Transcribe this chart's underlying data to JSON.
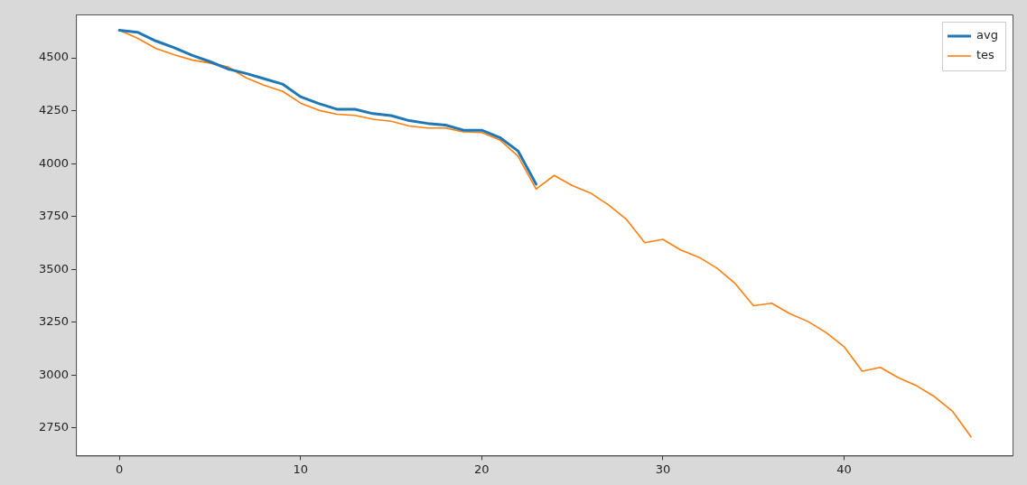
{
  "chart_data": {
    "type": "line",
    "x": [
      0,
      1,
      2,
      3,
      4,
      5,
      6,
      7,
      8,
      9,
      10,
      11,
      12,
      13,
      14,
      15,
      16,
      17,
      18,
      19,
      20,
      21,
      22,
      23,
      24,
      25,
      26,
      27,
      28,
      29,
      30,
      31,
      32,
      33,
      34,
      35,
      36,
      37,
      38,
      39,
      40,
      41,
      42,
      43,
      44,
      45,
      46,
      47
    ],
    "series": [
      {
        "name": "avg",
        "color": "#1f77b4",
        "x": [
          0,
          1,
          2,
          3,
          4,
          5,
          6,
          7,
          8,
          9,
          10,
          11,
          12,
          13,
          14,
          15,
          16,
          17,
          18,
          19,
          20,
          21,
          22,
          23
        ],
        "values": [
          4630,
          4621,
          4580,
          4549,
          4512,
          4482,
          4447,
          4426,
          4401,
          4376,
          4316,
          4284,
          4257,
          4257,
          4236,
          4227,
          4203,
          4190,
          4182,
          4158,
          4158,
          4123,
          4060,
          3903
        ]
      },
      {
        "name": "tes",
        "color": "#ff7f0e",
        "values": [
          4630,
          4593,
          4545,
          4515,
          4490,
          4475,
          4457,
          4405,
          4370,
          4342,
          4286,
          4252,
          4233,
          4228,
          4210,
          4200,
          4178,
          4168,
          4168,
          4150,
          4147,
          4112,
          4035,
          3879,
          3944,
          3896,
          3861,
          3805,
          3735,
          3626,
          3642,
          3591,
          3557,
          3505,
          3432,
          3328,
          3340,
          3291,
          3254,
          3202,
          3135,
          3019,
          3037,
          2988,
          2950,
          2898,
          2828,
          2709
        ]
      }
    ],
    "xlim": [
      -2.4,
      49.3
    ],
    "xticks": [
      0,
      10,
      20,
      30,
      40
    ],
    "ylim": [
      2620,
      4705
    ],
    "yticks": [
      2750,
      3000,
      3250,
      3500,
      3750,
      4000,
      4250,
      4500
    ],
    "grid": false,
    "legend": "top right",
    "marker": "none",
    "line_style": "solid"
  }
}
